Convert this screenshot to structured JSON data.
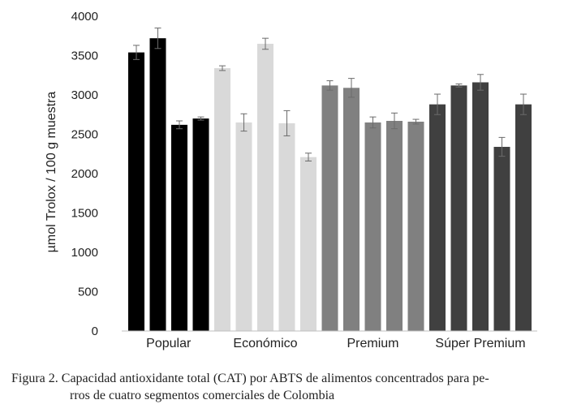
{
  "chart_data": {
    "type": "bar",
    "title": "",
    "xlabel": "",
    "ylabel": "µmol Trolox / 100 g muestra",
    "ylim": [
      0,
      4000
    ],
    "yticks": [
      0,
      500,
      1000,
      1500,
      2000,
      2500,
      3000,
      3500,
      4000
    ],
    "grid": false,
    "legend": "none",
    "error_bars": true,
    "groups": [
      {
        "name": "Popular",
        "color": "#000000",
        "values": [
          3540,
          3720,
          2620,
          2700
        ],
        "errors": [
          90,
          130,
          50,
          20
        ]
      },
      {
        "name": "Económico",
        "color": "#d9d9d9",
        "values": [
          3340,
          2650,
          3650,
          2640,
          2210
        ],
        "errors": [
          30,
          110,
          70,
          160,
          50
        ]
      },
      {
        "name": "Premium",
        "color": "#808080",
        "values": [
          3120,
          3090,
          2650,
          2670,
          2660
        ],
        "errors": [
          60,
          120,
          70,
          100,
          30
        ]
      },
      {
        "name": "Súper Premium",
        "color": "#404040",
        "values": [
          2880,
          3120,
          3160,
          2340,
          2880
        ],
        "errors": [
          130,
          20,
          100,
          120,
          130
        ]
      }
    ]
  },
  "caption": {
    "line1": "Figura 2. Capacidad antioxidante total (CAT) por ABTS de alimentos concentrados para pe-",
    "line2": "rros de cuatro segmentos comerciales de Colombia"
  }
}
